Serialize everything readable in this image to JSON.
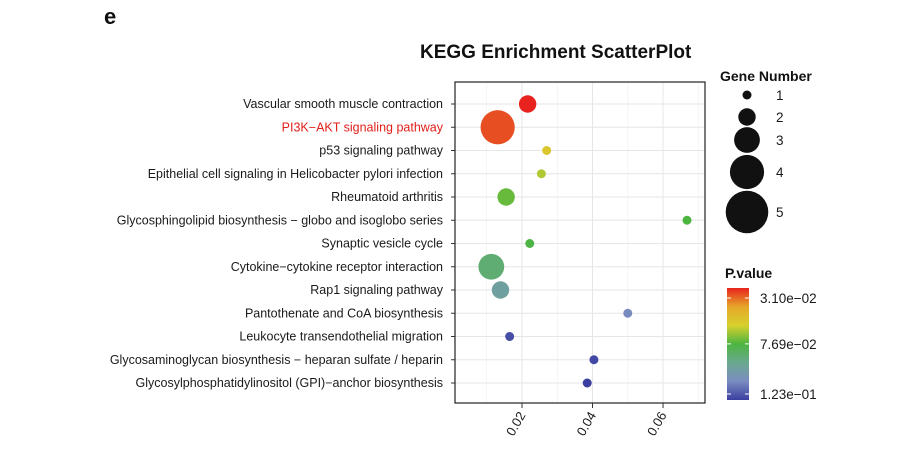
{
  "panel_label": "e",
  "chart_data": {
    "type": "scatter",
    "title": "KEGG Enrichment ScatterPlot",
    "xlabel": "",
    "ylabel": "",
    "xlim": [
      0.001,
      0.0719
    ],
    "x_ticks": [
      0.02,
      0.04,
      0.06
    ],
    "x_tick_labels": [
      "0.02",
      "0.04",
      "0.06"
    ],
    "grid": true,
    "highlight_color": "#e0201b",
    "points": [
      {
        "term": "Vascular smooth muscle contraction",
        "x": 0.0216,
        "gene_number": 2,
        "p_value": 0.031,
        "highlight": false
      },
      {
        "term": "PI3K−AKT signaling pathway",
        "x": 0.0131,
        "gene_number": 4,
        "p_value": 0.036,
        "highlight": true
      },
      {
        "term": "p53 signaling pathway",
        "x": 0.027,
        "gene_number": 1,
        "p_value": 0.058,
        "highlight": false
      },
      {
        "term": "Epithelial cell signaling in Helicobacter pylori infection",
        "x": 0.0255,
        "gene_number": 1,
        "p_value": 0.066,
        "highlight": false
      },
      {
        "term": "Rheumatoid arthritis",
        "x": 0.0155,
        "gene_number": 2,
        "p_value": 0.074,
        "highlight": false
      },
      {
        "term": "Glycosphingolipid biosynthesis − globo and isoglobo series",
        "x": 0.0668,
        "gene_number": 1,
        "p_value": 0.077,
        "highlight": false
      },
      {
        "term": "Synaptic vesicle cycle",
        "x": 0.0222,
        "gene_number": 1,
        "p_value": 0.078,
        "highlight": false
      },
      {
        "term": "Cytokine−cytokine receptor interaction",
        "x": 0.0113,
        "gene_number": 3,
        "p_value": 0.087,
        "highlight": false
      },
      {
        "term": "Rap1 signaling pathway",
        "x": 0.0139,
        "gene_number": 2,
        "p_value": 0.097,
        "highlight": false
      },
      {
        "term": "Pantothenate and CoA biosynthesis",
        "x": 0.05,
        "gene_number": 1,
        "p_value": 0.108,
        "highlight": false
      },
      {
        "term": "Leukocyte transendothelial migration",
        "x": 0.0165,
        "gene_number": 1,
        "p_value": 0.12,
        "highlight": false
      },
      {
        "term": "Glycosaminoglycan biosynthesis − heparan sulfate / heparin",
        "x": 0.0404,
        "gene_number": 1,
        "p_value": 0.121,
        "highlight": false
      },
      {
        "term": "Glycosylphosphatidylinositol (GPI)−anchor biosynthesis",
        "x": 0.0385,
        "gene_number": 1,
        "p_value": 0.123,
        "highlight": false
      }
    ],
    "size_legend": {
      "title": "Gene Number",
      "values": [
        1,
        2,
        3,
        4,
        5
      ],
      "labels": [
        "1",
        "2",
        "3",
        "4",
        "5"
      ]
    },
    "color_legend": {
      "title": "P.value",
      "min": 0.031,
      "max": 0.123,
      "tick_values": [
        0.031,
        0.0769,
        0.123
      ],
      "tick_labels": [
        "3.10e−02",
        "7.69e−02",
        "1.23e−01"
      ],
      "colors": [
        "#e8231d",
        "#e5a629",
        "#d8d02e",
        "#4cb540",
        "#6aa990",
        "#7a8cc0",
        "#3a3fa0"
      ]
    },
    "legend_placement": "right"
  }
}
